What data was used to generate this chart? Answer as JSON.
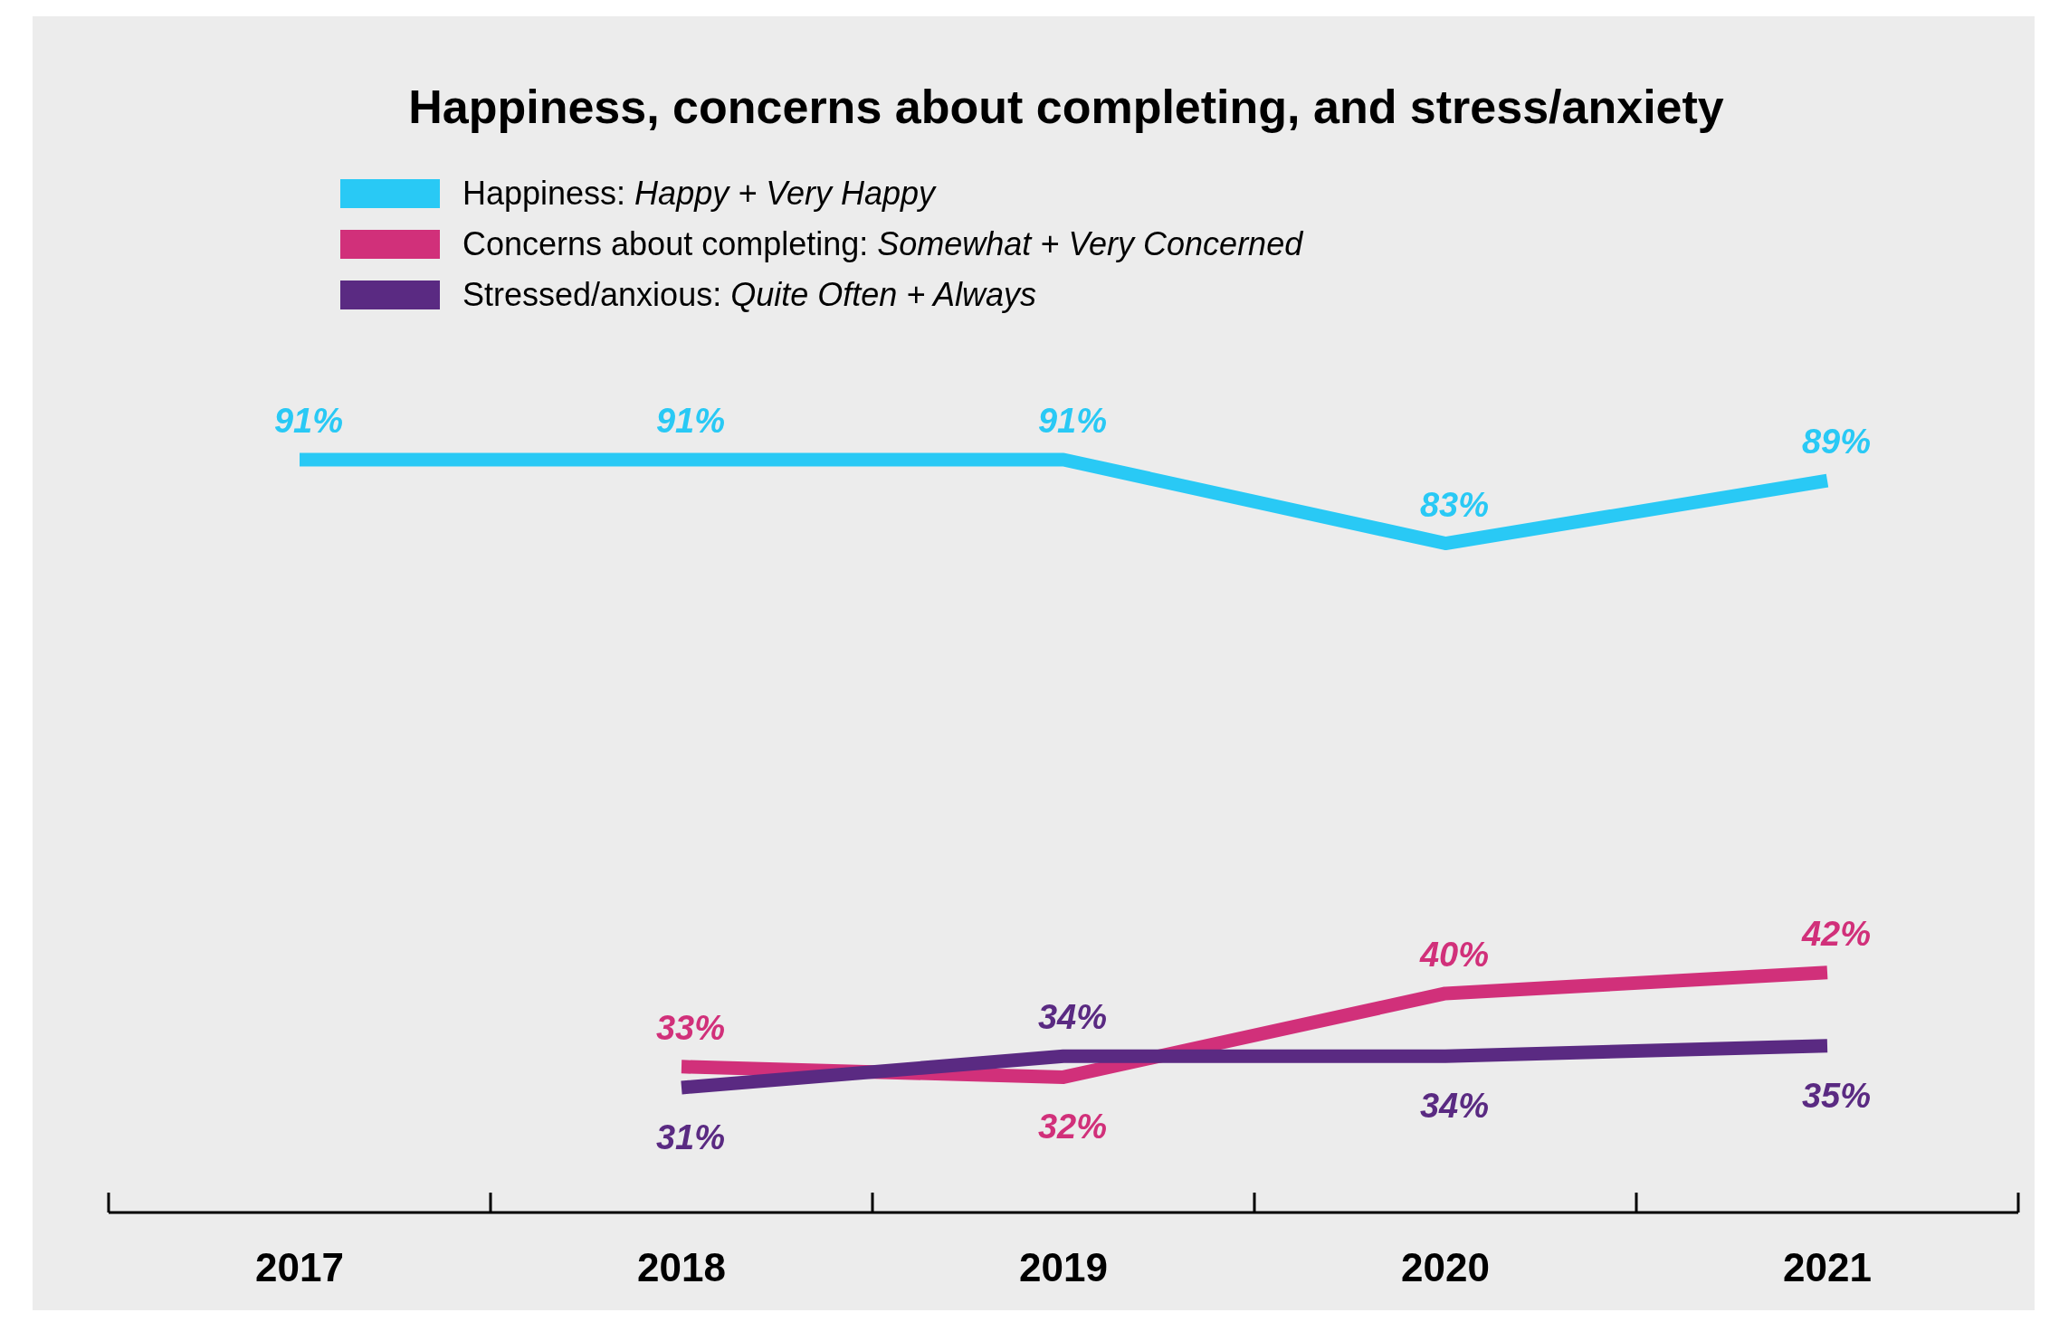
{
  "chart_data": {
    "type": "line",
    "title": "Happiness, concerns about completing, and stress/anxiety",
    "categories": [
      "2017",
      "2018",
      "2019",
      "2020",
      "2021"
    ],
    "series": [
      {
        "name": "Happiness: Happy + Very Happy",
        "color": "#29c9f5",
        "values": [
          91,
          91,
          91,
          83,
          89
        ],
        "value_labels": [
          "91%",
          "91%",
          "91%",
          "83%",
          "89%"
        ]
      },
      {
        "name": "Concerns about completing: Somewhat + Very Concerned",
        "color": "#d1307a",
        "values": [
          null,
          33,
          32,
          40,
          42
        ],
        "value_labels": [
          null,
          "33%",
          "32%",
          "40%",
          "42%"
        ]
      },
      {
        "name": "Stressed/anxious: Quite Often + Always",
        "color": "#5a2a82",
        "values": [
          null,
          31,
          34,
          34,
          35
        ],
        "value_labels": [
          null,
          "31%",
          "34%",
          "34%",
          "35%"
        ]
      }
    ],
    "tick_labels": "x",
    "legend": "top left",
    "grid": false,
    "marker": "none",
    "line_style": "solid"
  }
}
